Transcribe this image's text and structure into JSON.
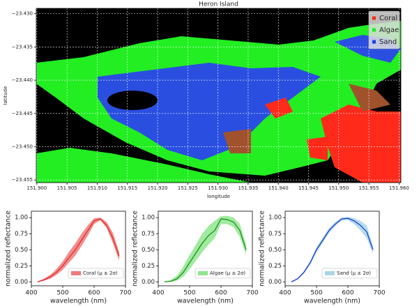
{
  "chart_data": [
    {
      "type": "image",
      "title": "Heron Island",
      "xlabel": "longitude",
      "ylabel": "latitude",
      "xlim": [
        151.8999,
        151.9603
      ],
      "ylim": [
        -23.4554,
        -23.4292
      ],
      "xticks": [
        {
          "value": 151.9,
          "label": "151.900"
        },
        {
          "value": 151.905,
          "label": "151.905"
        },
        {
          "value": 151.91,
          "label": "151.910"
        },
        {
          "value": 151.915,
          "label": "151.915"
        },
        {
          "value": 151.92,
          "label": "151.920"
        },
        {
          "value": 151.925,
          "label": "151.925"
        },
        {
          "value": 151.93,
          "label": "151.930"
        },
        {
          "value": 151.935,
          "label": "151.935"
        },
        {
          "value": 151.94,
          "label": "151.940"
        },
        {
          "value": 151.945,
          "label": "151.945"
        },
        {
          "value": 151.95,
          "label": "151.950"
        },
        {
          "value": 151.955,
          "label": "151.955"
        },
        {
          "value": 151.96,
          "label": "151.960"
        }
      ],
      "yticks": [
        {
          "value": -23.43,
          "label": "−23.430"
        },
        {
          "value": -23.435,
          "label": "−23.435"
        },
        {
          "value": -23.44,
          "label": "−23.440"
        },
        {
          "value": -23.445,
          "label": "−23.445"
        },
        {
          "value": -23.45,
          "label": "−23.450"
        },
        {
          "value": -23.455,
          "label": "−23.455"
        }
      ],
      "grid": true,
      "legend_position": "upper right",
      "legend": [
        {
          "name": "Coral",
          "color": "#ff2a1a"
        },
        {
          "name": "Algae",
          "color": "#22ee22"
        },
        {
          "name": "Sand",
          "color": "#1f3fe0"
        }
      ]
    },
    {
      "type": "line",
      "xlabel": "wavelength (nm)",
      "ylabel": "normalized reflectance",
      "xlim": [
        400,
        700
      ],
      "ylim": [
        -0.06,
        1.1
      ],
      "xticks": [
        400,
        500,
        600,
        700
      ],
      "yticks": [
        {
          "value": 0,
          "label": "0.00"
        },
        {
          "value": 0.25,
          "label": "0.25"
        },
        {
          "value": 0.5,
          "label": "0.50"
        },
        {
          "value": 0.75,
          "label": "0.75"
        },
        {
          "value": 1,
          "label": "1.00"
        }
      ],
      "legend_position": "lower right",
      "x": [
        420,
        440,
        460,
        480,
        500,
        520,
        540,
        560,
        580,
        600,
        620,
        640,
        660,
        680
      ],
      "series": [
        {
          "name": "Coral (μ ± 2σ)",
          "color": "#e8221c",
          "band_color": "#ef7a7a",
          "values": [
            0,
            0.03,
            0.08,
            0.15,
            0.25,
            0.38,
            0.5,
            0.65,
            0.8,
            0.95,
            0.98,
            0.88,
            0.68,
            0.4
          ],
          "lower": [
            0,
            0.02,
            0.05,
            0.11,
            0.19,
            0.3,
            0.41,
            0.56,
            0.72,
            0.9,
            0.96,
            0.84,
            0.6,
            0.33
          ],
          "upper": [
            0.01,
            0.05,
            0.11,
            0.2,
            0.32,
            0.47,
            0.6,
            0.75,
            0.88,
            0.99,
            1,
            0.93,
            0.76,
            0.46
          ]
        }
      ]
    },
    {
      "type": "line",
      "xlabel": "wavelength (nm)",
      "ylabel": "normalized reflectance",
      "xlim": [
        400,
        700
      ],
      "ylim": [
        -0.06,
        1.1
      ],
      "xticks": [
        400,
        500,
        600,
        700
      ],
      "yticks": [
        {
          "value": 0,
          "label": "0.00"
        },
        {
          "value": 0.25,
          "label": "0.25"
        },
        {
          "value": 0.5,
          "label": "0.50"
        },
        {
          "value": 0.75,
          "label": "0.75"
        },
        {
          "value": 1,
          "label": "1.00"
        }
      ],
      "legend_position": "lower right",
      "x": [
        420,
        440,
        460,
        480,
        500,
        520,
        540,
        560,
        580,
        600,
        620,
        640,
        660,
        680
      ],
      "series": [
        {
          "name": "Algae (μ ± 2σ)",
          "color": "#118811",
          "band_color": "#8fe68f",
          "values": [
            0,
            0.01,
            0.05,
            0.15,
            0.3,
            0.45,
            0.6,
            0.72,
            0.8,
            0.98,
            0.97,
            0.93,
            0.8,
            0.5
          ],
          "lower": [
            0,
            0,
            0.02,
            0.08,
            0.2,
            0.33,
            0.46,
            0.58,
            0.68,
            0.9,
            0.9,
            0.85,
            0.7,
            0.42
          ],
          "upper": [
            0.01,
            0.03,
            0.1,
            0.24,
            0.42,
            0.58,
            0.75,
            0.87,
            0.95,
            1.02,
            1.03,
            1.0,
            0.9,
            0.58
          ]
        }
      ]
    },
    {
      "type": "line",
      "xlabel": "wavelength (nm)",
      "ylabel": "normalized reflectance",
      "xlim": [
        400,
        700
      ],
      "ylim": [
        -0.06,
        1.1
      ],
      "xticks": [
        400,
        500,
        600,
        700
      ],
      "yticks": [
        {
          "value": 0,
          "label": "0.00"
        },
        {
          "value": 0.25,
          "label": "0.25"
        },
        {
          "value": 0.5,
          "label": "0.50"
        },
        {
          "value": 0.75,
          "label": "0.75"
        },
        {
          "value": 1,
          "label": "1.00"
        }
      ],
      "legend_position": "lower right",
      "x": [
        420,
        440,
        460,
        480,
        500,
        520,
        540,
        560,
        580,
        600,
        620,
        640,
        660,
        680
      ],
      "series": [
        {
          "name": "Sand (μ ± 2σ)",
          "color": "#0a2fd0",
          "band_color": "#a8d6e6",
          "values": [
            0,
            0.05,
            0.15,
            0.3,
            0.5,
            0.65,
            0.8,
            0.9,
            0.98,
            0.99,
            0.95,
            0.88,
            0.78,
            0.5
          ],
          "lower": [
            0,
            0.04,
            0.13,
            0.27,
            0.46,
            0.61,
            0.76,
            0.87,
            0.95,
            0.96,
            0.9,
            0.8,
            0.68,
            0.44
          ],
          "upper": [
            0.01,
            0.06,
            0.17,
            0.33,
            0.54,
            0.69,
            0.84,
            0.93,
            1.0,
            1.01,
            0.99,
            0.95,
            0.88,
            0.56
          ]
        }
      ]
    }
  ]
}
